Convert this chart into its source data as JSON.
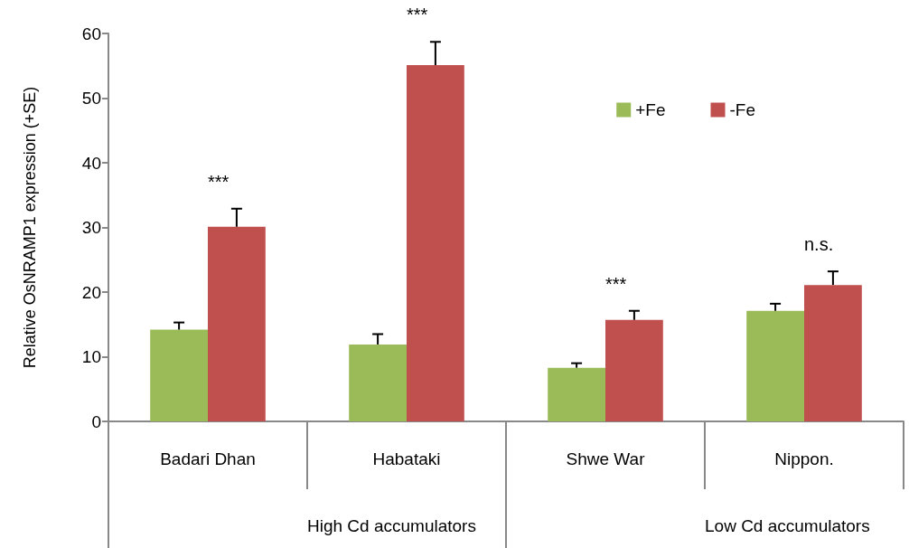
{
  "chart_data": {
    "type": "bar",
    "ylabel": "Relative OsNRAMP1 expression (+SE)",
    "categories": [
      "Badari Dhan",
      "Habataki",
      "Shwe War",
      "Nippon."
    ],
    "series": [
      {
        "name": "+Fe",
        "color": "#9bbb59",
        "values": [
          14.2,
          11.9,
          8.3,
          17.1
        ],
        "errors": [
          [
            14.2,
            15.3
          ],
          [
            11.9,
            13.5
          ],
          [
            8.3,
            9.0
          ],
          [
            17.1,
            18.2
          ]
        ]
      },
      {
        "name": "-Fe",
        "color": "#c0504d",
        "values": [
          30.1,
          55.1,
          15.7,
          21.1
        ],
        "errors": [
          [
            30.1,
            32.9
          ],
          [
            55.1,
            58.7
          ],
          [
            15.7,
            17.1
          ],
          [
            21.1,
            23.2
          ]
        ]
      }
    ],
    "ylim": [
      0,
      60
    ],
    "yticks": [
      0,
      10,
      20,
      30,
      40,
      50,
      60
    ],
    "annotations": [
      "***",
      "***",
      "***",
      "n.s.",
      "High Cd accumulators",
      "Low Cd accumulators"
    ],
    "grid": false,
    "legend": "top right"
  }
}
